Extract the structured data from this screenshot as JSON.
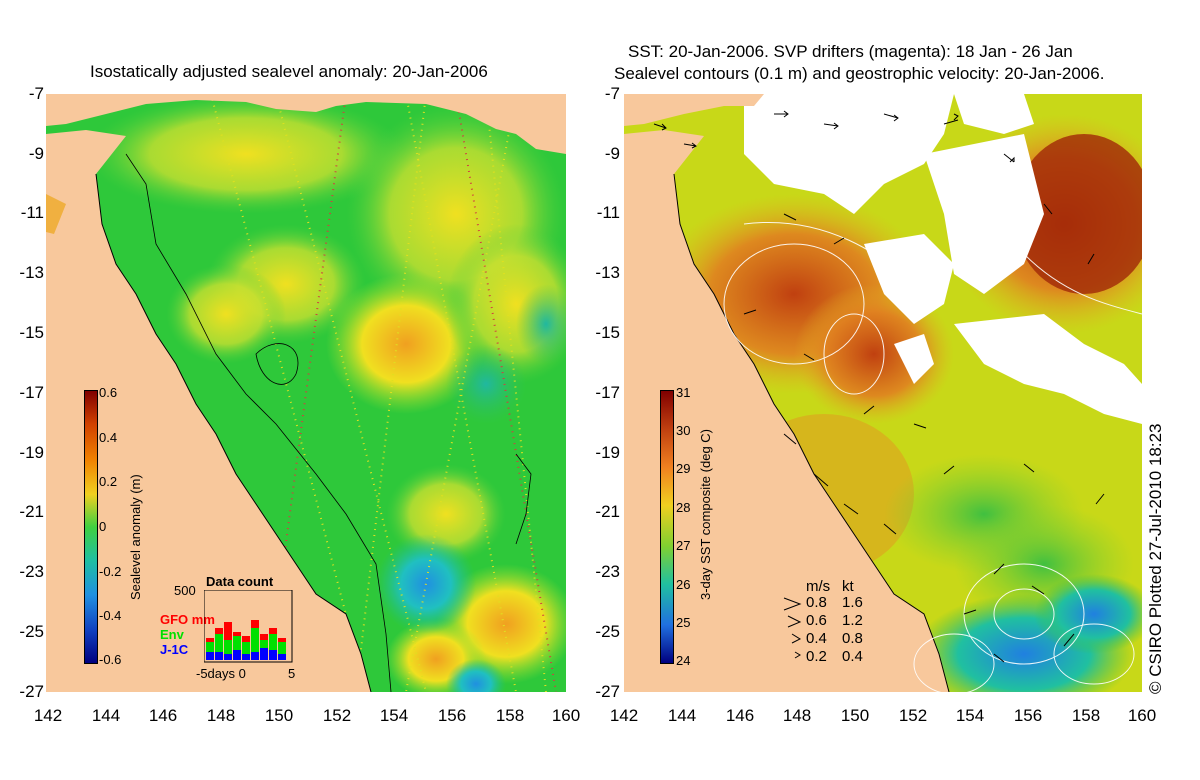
{
  "left_panel": {
    "title": "Isostatically adjusted sealevel anomaly: 20-Jan-2006",
    "colorbar": {
      "label": "Sealevel anomaly (m)",
      "ticks": [
        "0.6",
        "0.4",
        "0.2",
        "0",
        "-0.2",
        "-0.4",
        "-0.6"
      ],
      "range": [
        -0.6,
        0.6
      ]
    },
    "inset": {
      "title": "Data count",
      "ymax_label": "500",
      "legend": [
        {
          "label": "GFO mm",
          "color": "#ff0000"
        },
        {
          "label": "Env",
          "color": "#00e000"
        },
        {
          "label": "J-1C",
          "color": "#0000ff"
        }
      ],
      "xlabel": "-5days 0",
      "xlabel_end": "5"
    }
  },
  "right_panel": {
    "title_line1": "SST: 20-Jan-2006. SVP drifters (magenta): 18 Jan - 26 Jan",
    "title_line2": "Sealevel contours (0.1 m) and geostrophic velocity: 20-Jan-2006.",
    "colorbar": {
      "label": "3-day SST composite (deg C)",
      "ticks": [
        "31",
        "30",
        "29",
        "28",
        "27",
        "26",
        "25",
        "24"
      ],
      "range": [
        24,
        31
      ]
    },
    "velocity_legend": {
      "header_ms": "m/s",
      "header_kt": "kt",
      "rows": [
        {
          "ms": "0.8",
          "kt": "1.6"
        },
        {
          "ms": "0.6",
          "kt": "1.2"
        },
        {
          "ms": "0.4",
          "kt": "0.8"
        },
        {
          "ms": "0.2",
          "kt": "0.4"
        }
      ]
    },
    "credit": "© CSIRO Plotted 27-Jul-2010 18:23"
  },
  "axes": {
    "y_ticks": [
      "-7",
      "-9",
      "-11",
      "-13",
      "-15",
      "-17",
      "-19",
      "-21",
      "-23",
      "-25",
      "-27"
    ],
    "x_ticks": [
      "142",
      "144",
      "146",
      "148",
      "150",
      "152",
      "154",
      "156",
      "158",
      "160"
    ],
    "lat_range": [
      -27,
      -7
    ],
    "lon_range": [
      142,
      160
    ]
  },
  "colors": {
    "land": "#f8c89c",
    "ocean_base_left": "#2ec83a",
    "ocean_base_right": "#c8d818",
    "cloud": "#ffffff"
  }
}
